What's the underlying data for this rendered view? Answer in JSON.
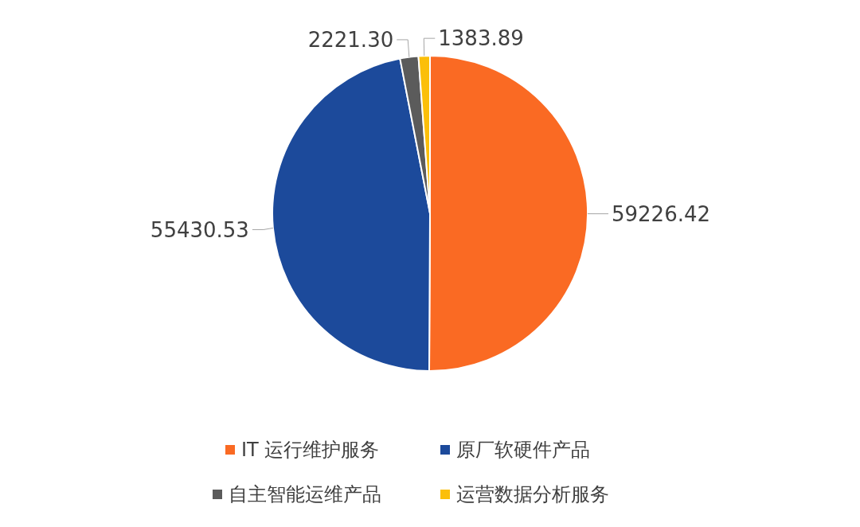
{
  "chart_data": {
    "type": "pie",
    "categories": [
      "IT 运行维护服务",
      "原厂软硬件产品",
      "自主智能运维产品",
      "运营数据分析服务"
    ],
    "values": [
      59226.42,
      55430.53,
      2221.3,
      1383.89
    ],
    "value_labels": [
      "59226.42",
      "55430.53",
      "2221.30",
      "1383.89"
    ],
    "colors": [
      "#fa6a23",
      "#1c4a9b",
      "#5b5b5b",
      "#fbbf0a"
    ],
    "data_labels": true,
    "legend": "bottom"
  }
}
